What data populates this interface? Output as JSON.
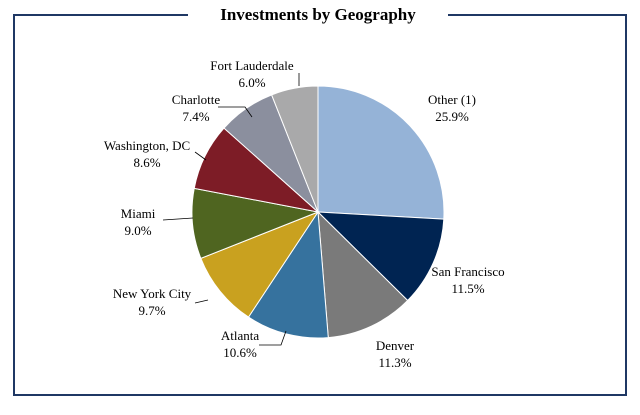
{
  "chart_data": {
    "type": "pie",
    "title": "Investments by Geography",
    "start_angle_deg": 0,
    "direction": "clockwise",
    "slices": [
      {
        "label": "Other (1)",
        "value": 25.9,
        "value_label": "25.9%",
        "color": "#95b3d7"
      },
      {
        "label": "San Francisco",
        "value": 11.5,
        "value_label": "11.5%",
        "color": "#002452"
      },
      {
        "label": "Denver",
        "value": 11.3,
        "value_label": "11.3%",
        "color": "#7a7a7a"
      },
      {
        "label": "Atlanta",
        "value": 10.6,
        "value_label": "10.6%",
        "color": "#36729e"
      },
      {
        "label": "New York City",
        "value": 9.7,
        "value_label": "9.7%",
        "color": "#c9a11f"
      },
      {
        "label": "Miami",
        "value": 9.0,
        "value_label": "9.0%",
        "color": "#4f6520"
      },
      {
        "label": "Washington, DC",
        "value": 8.6,
        "value_label": "8.6%",
        "color": "#7d1c26"
      },
      {
        "label": "Charlotte",
        "value": 7.4,
        "value_label": "7.4%",
        "color": "#8b8f9e"
      },
      {
        "label": "Fort Lauderdale",
        "value": 6.0,
        "value_label": "6.0%",
        "color": "#a9a9aa"
      }
    ],
    "legend": "none",
    "grid": false
  },
  "colors": {
    "frame": "#1f3864",
    "text": "#000000",
    "slice_edge": "#ffffff"
  }
}
